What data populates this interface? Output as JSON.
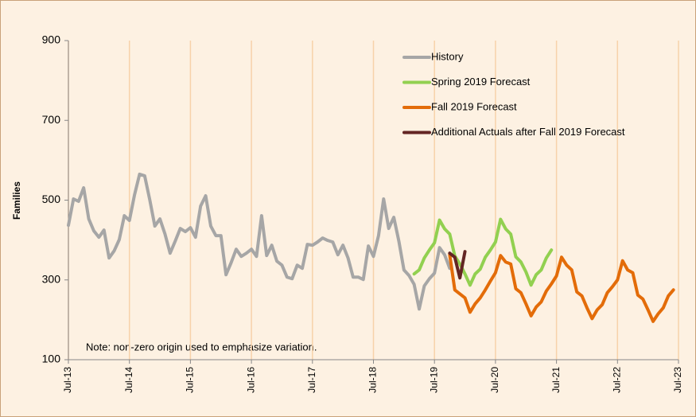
{
  "chart_data": {
    "type": "line",
    "y_label": "Families",
    "annotation": "Note: non-zero origin used to emphasize variation.",
    "ylim": [
      100,
      900
    ],
    "yticks": [
      100,
      300,
      500,
      700,
      900
    ],
    "grid": true,
    "legend": "upper right",
    "categories": [
      "Jul-13",
      null,
      null,
      null,
      null,
      null,
      null,
      null,
      null,
      null,
      null,
      null,
      "Jul-14",
      null,
      null,
      null,
      null,
      null,
      null,
      null,
      null,
      null,
      null,
      null,
      "Jul-15",
      null,
      null,
      null,
      null,
      null,
      null,
      null,
      null,
      null,
      null,
      null,
      "Jul-16",
      null,
      null,
      null,
      null,
      null,
      null,
      null,
      null,
      null,
      null,
      null,
      "Jul-17",
      null,
      null,
      null,
      null,
      null,
      null,
      null,
      null,
      null,
      null,
      null,
      "Jul-18",
      null,
      null,
      null,
      null,
      null,
      null,
      null,
      null,
      null,
      null,
      null,
      "Jul-19",
      null,
      null,
      null,
      null,
      null,
      null,
      null,
      null,
      null,
      null,
      null,
      "Jul-20",
      null,
      null,
      null,
      null,
      null,
      null,
      null,
      null,
      null,
      null,
      null,
      "Jul-21",
      null,
      null,
      null,
      null,
      null,
      null,
      null,
      null,
      null,
      null,
      null,
      "Jul-22",
      null,
      null,
      null,
      null,
      null,
      null,
      null,
      null,
      null,
      null,
      null,
      "Jul-23"
    ],
    "series": [
      {
        "name": "History",
        "color": "#a6a6a6",
        "values": [
          437,
          503,
          497,
          531,
          453,
          423,
          407,
          425,
          355,
          373,
          401,
          461,
          449,
          513,
          565,
          561,
          501,
          435,
          453,
          415,
          367,
          397,
          429,
          421,
          431,
          407,
          485,
          511,
          435,
          411,
          411,
          313,
          343,
          377,
          359,
          367,
          377,
          359,
          461,
          361,
          387,
          347,
          337,
          307,
          303,
          337,
          329,
          389,
          387,
          395,
          405,
          399,
          395,
          363,
          387,
          355,
          307,
          307,
          301,
          385,
          359,
          411,
          503,
          429,
          457,
          397,
          325,
          311,
          289,
          227,
          285,
          303,
          317,
          381,
          363,
          329,
          null,
          null,
          null,
          null,
          null,
          null,
          null,
          null,
          null,
          null,
          null,
          null,
          null,
          null,
          null,
          null,
          null,
          null,
          null,
          null,
          null,
          null,
          null,
          null,
          null,
          null,
          null,
          null,
          null,
          null,
          null,
          null,
          null,
          null,
          null,
          null,
          null,
          null,
          null,
          null,
          null,
          null,
          null,
          null,
          null
        ]
      },
      {
        "name": "Spring 2019 Forecast",
        "color": "#92d050",
        "values": [
          null,
          null,
          null,
          null,
          null,
          null,
          null,
          null,
          null,
          null,
          null,
          null,
          null,
          null,
          null,
          null,
          null,
          null,
          null,
          null,
          null,
          null,
          null,
          null,
          null,
          null,
          null,
          null,
          null,
          null,
          null,
          null,
          null,
          null,
          null,
          null,
          null,
          null,
          null,
          null,
          null,
          null,
          null,
          null,
          null,
          null,
          null,
          null,
          null,
          null,
          null,
          null,
          null,
          null,
          null,
          null,
          null,
          null,
          null,
          null,
          null,
          null,
          null,
          null,
          null,
          null,
          null,
          null,
          315,
          325,
          355,
          375,
          393,
          450,
          428,
          415,
          360,
          340,
          315,
          287,
          315,
          327,
          357,
          375,
          395,
          452,
          428,
          415,
          358,
          345,
          320,
          287,
          313,
          325,
          355,
          375,
          null,
          null,
          null,
          null,
          null,
          null,
          null,
          null,
          null,
          null,
          null,
          null,
          null,
          null,
          null,
          null,
          null,
          null,
          null,
          null,
          null,
          null,
          null,
          null,
          null
        ]
      },
      {
        "name": "Fall 2019 Forecast",
        "color": "#e36c09",
        "values": [
          null,
          null,
          null,
          null,
          null,
          null,
          null,
          null,
          null,
          null,
          null,
          null,
          null,
          null,
          null,
          null,
          null,
          null,
          null,
          null,
          null,
          null,
          null,
          null,
          null,
          null,
          null,
          null,
          null,
          null,
          null,
          null,
          null,
          null,
          null,
          null,
          null,
          null,
          null,
          null,
          null,
          null,
          null,
          null,
          null,
          null,
          null,
          null,
          null,
          null,
          null,
          null,
          null,
          null,
          null,
          null,
          null,
          null,
          null,
          null,
          null,
          null,
          null,
          null,
          null,
          null,
          null,
          null,
          null,
          null,
          null,
          null,
          null,
          null,
          null,
          363,
          275,
          265,
          255,
          219,
          240,
          255,
          275,
          297,
          318,
          361,
          345,
          340,
          278,
          268,
          240,
          210,
          232,
          245,
          272,
          290,
          310,
          357,
          337,
          325,
          270,
          260,
          230,
          203,
          225,
          238,
          268,
          283,
          300,
          348,
          325,
          318,
          262,
          252,
          225,
          196,
          215,
          230,
          260,
          275,
          null
        ]
      },
      {
        "name": "Additional Actuals after Fall 2019 Forecast",
        "color": "#632523",
        "values": [
          null,
          null,
          null,
          null,
          null,
          null,
          null,
          null,
          null,
          null,
          null,
          null,
          null,
          null,
          null,
          null,
          null,
          null,
          null,
          null,
          null,
          null,
          null,
          null,
          null,
          null,
          null,
          null,
          null,
          null,
          null,
          null,
          null,
          null,
          null,
          null,
          null,
          null,
          null,
          null,
          null,
          null,
          null,
          null,
          null,
          null,
          null,
          null,
          null,
          null,
          null,
          null,
          null,
          null,
          null,
          null,
          null,
          null,
          null,
          null,
          null,
          null,
          null,
          null,
          null,
          null,
          null,
          null,
          null,
          null,
          null,
          null,
          null,
          null,
          null,
          367,
          357,
          305,
          371,
          null,
          null,
          null,
          null,
          null,
          null,
          null,
          null,
          null,
          null,
          null,
          null,
          null,
          null,
          null,
          null,
          null,
          null,
          null,
          null,
          null,
          null,
          null,
          null,
          null,
          null,
          null,
          null,
          null,
          null,
          null,
          null,
          null,
          null,
          null,
          null,
          null,
          null,
          null,
          null,
          null,
          null
        ]
      }
    ]
  }
}
